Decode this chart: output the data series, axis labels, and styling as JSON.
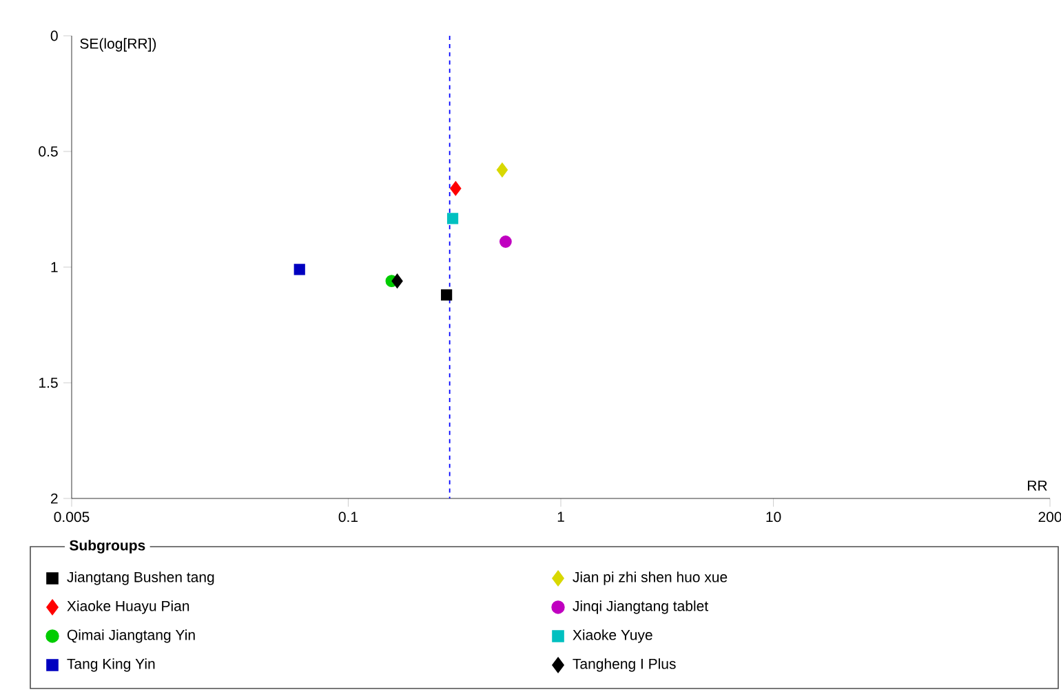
{
  "chart_data": {
    "type": "scatter",
    "xlabel": "RR",
    "ylabel": "SE(log[RR])",
    "legend_title": "Subgroups",
    "log": "x",
    "legend": "bottom",
    "xlim": [
      0.005,
      200
    ],
    "xticks": [
      0.005,
      0.1,
      1,
      10,
      200
    ],
    "ylim": [
      2,
      0
    ],
    "yticks": [
      0,
      0.5,
      1,
      1.5,
      2
    ],
    "ref_lines": [
      {
        "axis": "x",
        "value": 0.3,
        "color": "#0000ff",
        "line_style": "dashed"
      }
    ],
    "series": [
      {
        "name": "Jiangtang Bushen tang",
        "color": "#000000",
        "marker": "square",
        "x": [
          0.29
        ],
        "values": [
          1.12
        ]
      },
      {
        "name": "Xiaoke Huayu Pian",
        "color": "#ff0000",
        "marker": "diamond",
        "x": [
          0.32
        ],
        "values": [
          0.66
        ]
      },
      {
        "name": "Qimai Jiangtang Yin",
        "color": "#00cc00",
        "marker": "circle",
        "x": [
          0.16
        ],
        "values": [
          1.06
        ]
      },
      {
        "name": "Tang King Yin",
        "color": "#0000c0",
        "marker": "square",
        "x": [
          0.059
        ],
        "values": [
          1.01
        ]
      },
      {
        "name": "Jian pi zhi shen huo xue",
        "color": "#d8d800",
        "marker": "diamond",
        "x": [
          0.53
        ],
        "values": [
          0.58
        ]
      },
      {
        "name": "Jinqi Jiangtang tablet",
        "color": "#c000c0",
        "marker": "circle",
        "x": [
          0.55
        ],
        "values": [
          0.89
        ]
      },
      {
        "name": "Xiaoke Yuye",
        "color": "#00c0c0",
        "marker": "square",
        "x": [
          0.31
        ],
        "values": [
          0.79
        ]
      },
      {
        "name": "Tangheng I Plus",
        "color": "#000000",
        "marker": "diamond",
        "x": [
          0.17
        ],
        "values": [
          1.06
        ]
      }
    ]
  }
}
